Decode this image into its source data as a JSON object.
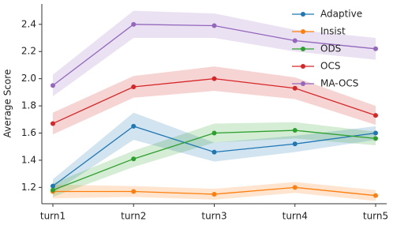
{
  "chart_data": {
    "type": "line",
    "y_label": "Average Score",
    "categories": [
      "turn1",
      "turn2",
      "turn3",
      "turn4",
      "turn5"
    ],
    "ylim": [
      1.08,
      2.55
    ],
    "yticks": [
      1.2,
      1.4,
      1.6,
      1.8,
      {
        "value": 2,
        "label": "2.0"
      },
      2.2,
      2.4
    ],
    "legend": "upper right",
    "series": [
      {
        "name": "Adaptive",
        "color": "#1f77b4",
        "values": [
          1.21,
          1.65,
          1.46,
          1.52,
          1.6
        ],
        "ci": [
          0.05,
          0.1,
          0.07,
          0.06,
          0.05
        ]
      },
      {
        "name": "Insist",
        "color": "#ff7f0e",
        "values": [
          1.17,
          1.17,
          1.15,
          1.2,
          1.14
        ],
        "ci": [
          0.05,
          0.04,
          0.04,
          0.04,
          0.04
        ]
      },
      {
        "name": "ODS",
        "color": "#2ca02c",
        "values": [
          1.18,
          1.41,
          1.6,
          1.62,
          1.56
        ],
        "ci": [
          0.05,
          0.06,
          0.07,
          0.06,
          0.05
        ]
      },
      {
        "name": "OCS",
        "color": "#d62728",
        "values": [
          1.67,
          1.94,
          2.0,
          1.93,
          1.73
        ],
        "ci": [
          0.08,
          0.08,
          0.09,
          0.08,
          0.07
        ]
      },
      {
        "name": "MA-OCS",
        "color": "#9467bd",
        "values": [
          1.95,
          2.4,
          2.39,
          2.28,
          2.22
        ],
        "ci": [
          0.08,
          0.1,
          0.09,
          0.08,
          0.08
        ]
      }
    ]
  }
}
